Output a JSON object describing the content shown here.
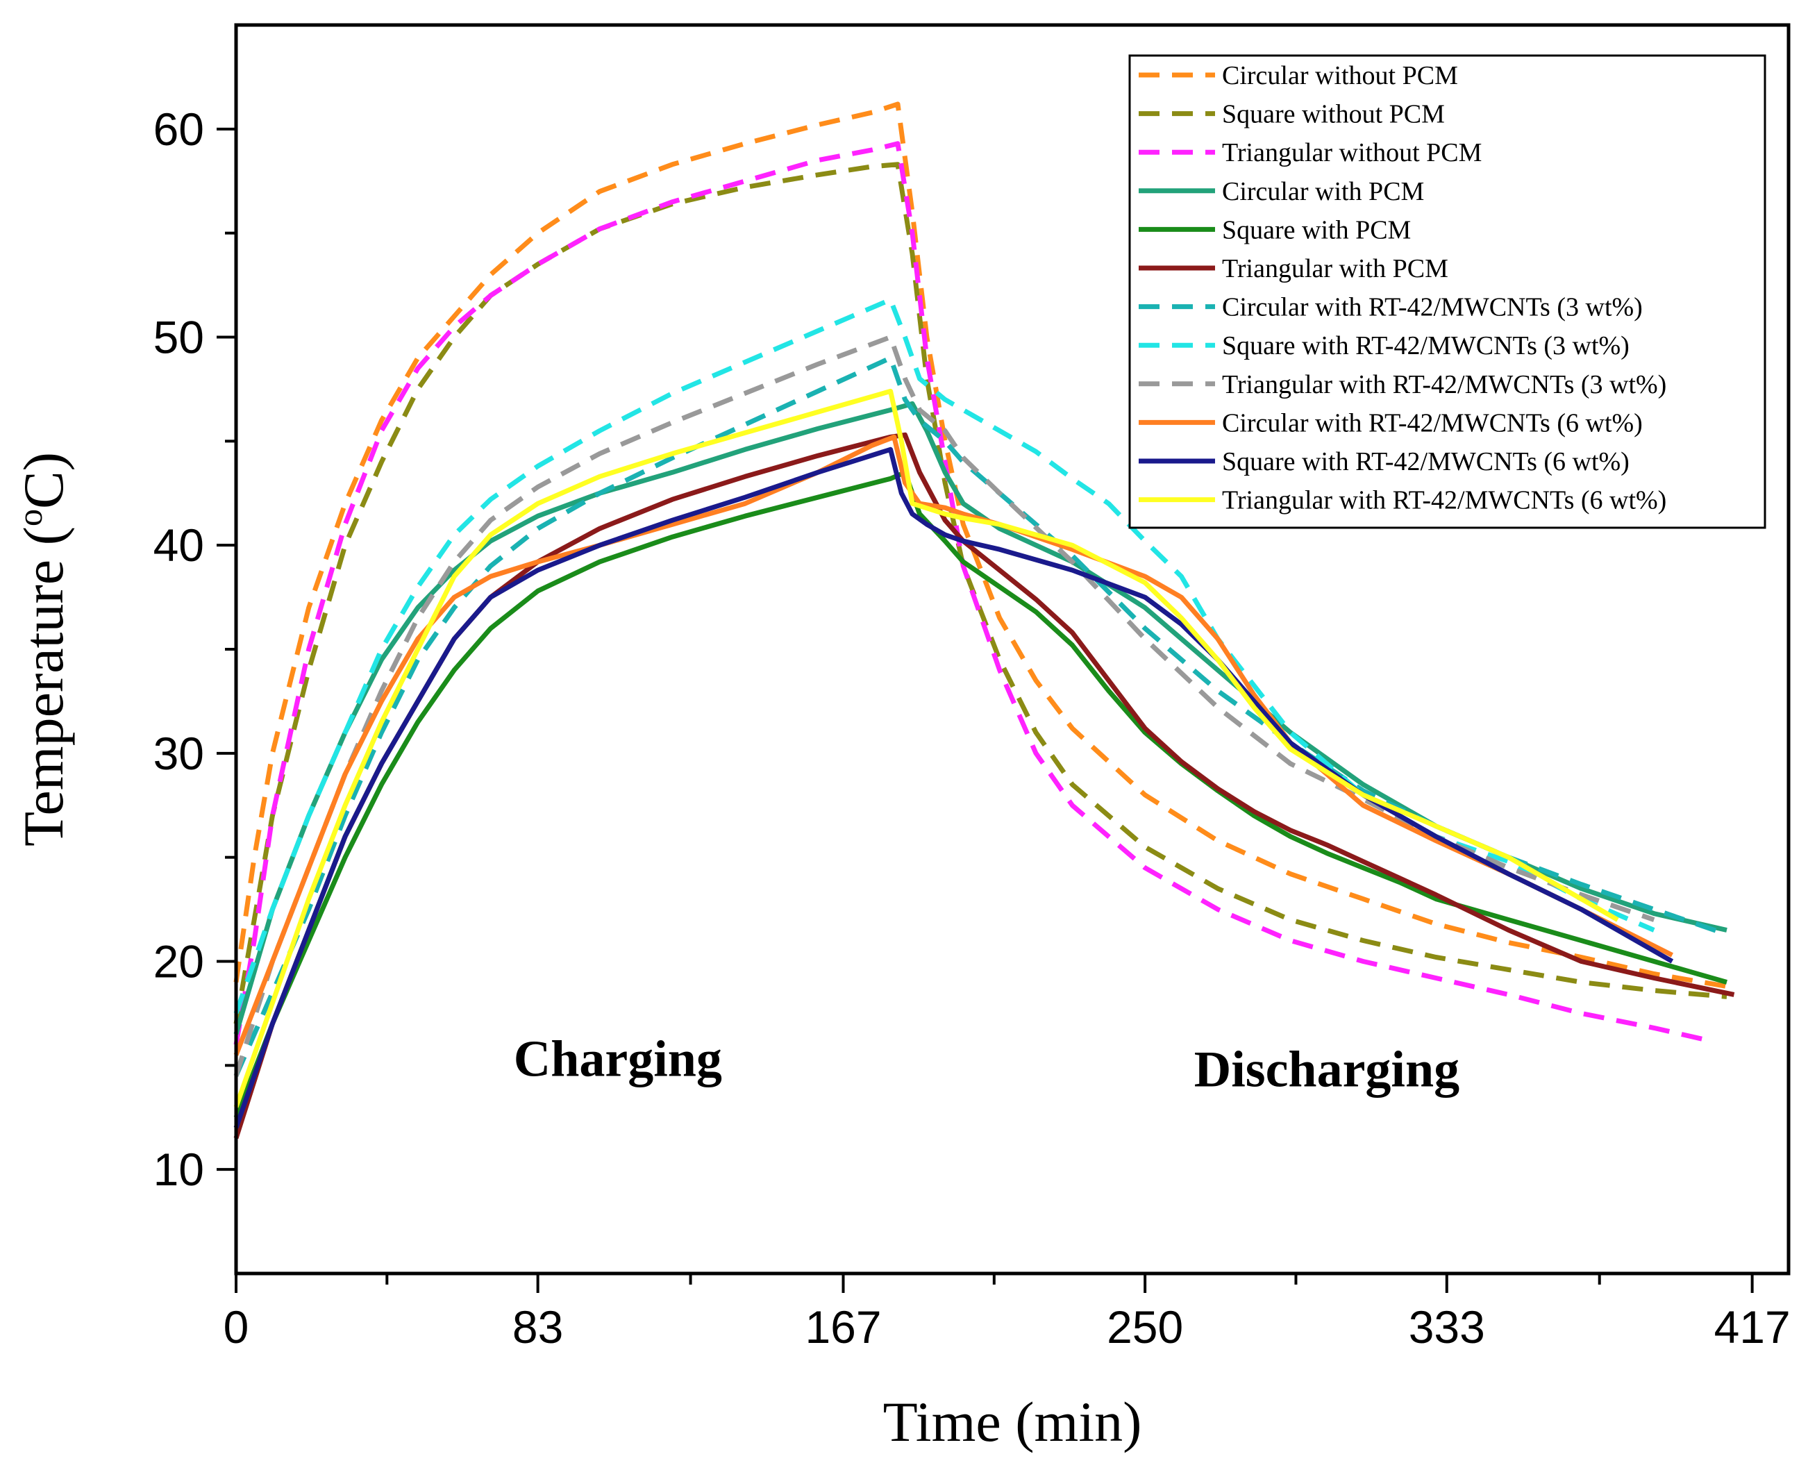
{
  "chart_data": {
    "type": "line",
    "title": "",
    "xlabel": "Time (min)",
    "ylabel_main": "Temperature (",
    "ylabel_sup": "o",
    "ylabel_end": "C)",
    "xlim": [
      0,
      427
    ],
    "ylim": [
      5,
      65
    ],
    "x_ticks": [
      0,
      83,
      167,
      250,
      333,
      417
    ],
    "x_tick_labels": [
      "0",
      "83",
      "167",
      "250",
      "333",
      "417"
    ],
    "x_minor_ticks": [
      41.5,
      125,
      208.5,
      291.5,
      375
    ],
    "y_ticks": [
      10,
      20,
      30,
      40,
      50,
      60
    ],
    "y_tick_labels": [
      "10",
      "20",
      "30",
      "40",
      "50",
      "60"
    ],
    "y_minor_ticks": [
      15,
      25,
      35,
      45,
      55
    ],
    "legend_position": "top-right",
    "annotations": [
      {
        "text": "Charging",
        "x": 105,
        "y": 14.5
      },
      {
        "text": "Discharging",
        "x": 300,
        "y": 14
      }
    ],
    "series": [
      {
        "name": "Circular without PCM",
        "color": "#FF8C1A",
        "dash": true,
        "x": [
          0,
          5,
          10,
          20,
          30,
          40,
          50,
          60,
          70,
          83,
          100,
          120,
          140,
          160,
          175,
          182,
          186,
          190,
          195,
          200,
          210,
          220,
          230,
          250,
          270,
          290,
          310,
          330,
          350,
          370,
          390,
          410
        ],
        "y": [
          19,
          25,
          30,
          37,
          42,
          46,
          49,
          51,
          53,
          55,
          57,
          58.3,
          59.3,
          60.2,
          60.8,
          61.2,
          56,
          50,
          45,
          41,
          36.5,
          33.5,
          31.2,
          28,
          25.8,
          24.2,
          23,
          21.8,
          20.9,
          20.2,
          19.4,
          18.8
        ]
      },
      {
        "name": "Square without PCM",
        "color": "#8B8B14",
        "dash": true,
        "x": [
          0,
          5,
          10,
          20,
          30,
          40,
          50,
          60,
          70,
          83,
          100,
          120,
          140,
          160,
          175,
          182,
          186,
          190,
          195,
          200,
          210,
          220,
          230,
          250,
          270,
          290,
          310,
          330,
          350,
          370,
          390,
          410
        ],
        "y": [
          17,
          22,
          27,
          34,
          40,
          44,
          47.5,
          50,
          52,
          53.5,
          55.2,
          56.4,
          57.2,
          57.8,
          58.2,
          58.3,
          54,
          48,
          43,
          39,
          34.5,
          31,
          28.5,
          25.5,
          23.5,
          22,
          21,
          20.2,
          19.6,
          19,
          18.6,
          18.3
        ]
      },
      {
        "name": "Triangular without PCM",
        "color": "#FF22FF",
        "dash": true,
        "x": [
          0,
          5,
          10,
          20,
          30,
          40,
          50,
          60,
          70,
          83,
          100,
          120,
          140,
          160,
          175,
          182,
          186,
          190,
          195,
          200,
          210,
          220,
          230,
          250,
          270,
          290,
          310,
          330,
          350,
          370,
          390,
          405
        ],
        "y": [
          16,
          21,
          27,
          35,
          41,
          45.5,
          48.5,
          50.5,
          52,
          53.5,
          55.2,
          56.5,
          57.5,
          58.5,
          59,
          59.3,
          55,
          49,
          44,
          39,
          34,
          30,
          27.5,
          24.5,
          22.5,
          21,
          20,
          19.2,
          18.4,
          17.5,
          16.8,
          16.2
        ]
      },
      {
        "name": "Circular with PCM",
        "color": "#22A27A",
        "dash": false,
        "x": [
          0,
          10,
          20,
          30,
          40,
          50,
          60,
          70,
          83,
          100,
          120,
          140,
          160,
          180,
          186,
          190,
          195,
          200,
          210,
          230,
          250,
          270,
          290,
          310,
          330,
          350,
          370,
          390,
          410
        ],
        "y": [
          16.5,
          22.5,
          27,
          31,
          34.5,
          37,
          38.8,
          40.2,
          41.4,
          42.5,
          43.5,
          44.6,
          45.6,
          46.5,
          46.8,
          45.5,
          43.5,
          42,
          40.8,
          39.2,
          37,
          34,
          31,
          28.5,
          26.5,
          25,
          23.5,
          22.3,
          21.5
        ]
      },
      {
        "name": "Square with PCM",
        "color": "#1A8C1A",
        "dash": false,
        "x": [
          0,
          10,
          20,
          30,
          40,
          50,
          60,
          70,
          83,
          100,
          120,
          140,
          160,
          180,
          184,
          188,
          195,
          200,
          210,
          220,
          230,
          240,
          250,
          260,
          270,
          280,
          290,
          300,
          310,
          320,
          330,
          350,
          370,
          390,
          410
        ],
        "y": [
          12.5,
          17,
          21,
          25,
          28.5,
          31.5,
          34,
          36,
          37.8,
          39.2,
          40.4,
          41.4,
          42.3,
          43.2,
          43.5,
          41.5,
          40.2,
          39.2,
          38,
          36.8,
          35.2,
          33,
          31,
          29.5,
          28.2,
          27,
          26,
          25.2,
          24.5,
          23.8,
          23,
          22,
          21,
          20,
          19
        ]
      },
      {
        "name": "Triangular with PCM",
        "color": "#8B1A1A",
        "dash": false,
        "x": [
          0,
          10,
          20,
          30,
          40,
          50,
          60,
          70,
          83,
          100,
          120,
          140,
          160,
          180,
          184,
          188,
          195,
          200,
          210,
          220,
          230,
          240,
          250,
          260,
          270,
          280,
          290,
          300,
          310,
          320,
          330,
          350,
          370,
          390,
          412
        ],
        "y": [
          11.5,
          17,
          21.5,
          26,
          29.5,
          32.5,
          35.5,
          37.5,
          39.2,
          40.8,
          42.2,
          43.3,
          44.3,
          45.2,
          45.3,
          43.5,
          41.2,
          40.2,
          38.8,
          37.4,
          35.8,
          33.5,
          31.2,
          29.6,
          28.3,
          27.2,
          26.3,
          25.6,
          24.8,
          24,
          23.2,
          21.5,
          20,
          19.2,
          18.4
        ]
      },
      {
        "name": "Circular with RT-42/MWCNTs (3 wt%)",
        "color": "#1AB2B2",
        "dash": true,
        "x": [
          0,
          10,
          20,
          30,
          40,
          50,
          60,
          70,
          83,
          100,
          120,
          140,
          160,
          180,
          184,
          188,
          195,
          200,
          210,
          230,
          250,
          270,
          290,
          310,
          330,
          350,
          370,
          390,
          410
        ],
        "y": [
          14.5,
          18.5,
          22.5,
          27,
          31,
          34.5,
          37,
          39,
          40.8,
          42.5,
          44.2,
          45.8,
          47.4,
          49,
          47,
          46,
          45,
          44,
          42.5,
          39.5,
          36,
          33,
          30.5,
          28.2,
          26.5,
          25,
          23.7,
          22.5,
          21.3
        ]
      },
      {
        "name": "Square with RT-42/MWCNTs (3 wt%)",
        "color": "#22E5E5",
        "dash": true,
        "x": [
          0,
          10,
          20,
          30,
          40,
          50,
          60,
          70,
          83,
          100,
          120,
          140,
          160,
          180,
          184,
          188,
          195,
          200,
          210,
          220,
          230,
          240,
          250,
          260,
          270,
          290,
          310,
          330,
          350,
          370,
          390
        ],
        "y": [
          17.5,
          22.5,
          27,
          31,
          35,
          38,
          40.5,
          42.2,
          43.8,
          45.5,
          47.3,
          48.8,
          50.3,
          51.8,
          50,
          48,
          47,
          46.5,
          45.5,
          44.5,
          43.2,
          42,
          40.2,
          38.5,
          35.5,
          31,
          28,
          26,
          24.8,
          23,
          21.5
        ]
      },
      {
        "name": "Triangular with RT-42/MWCNTs (3 wt%)",
        "color": "#999999",
        "dash": true,
        "x": [
          0,
          10,
          20,
          30,
          40,
          50,
          60,
          70,
          83,
          100,
          120,
          140,
          160,
          180,
          184,
          188,
          195,
          200,
          210,
          230,
          250,
          270,
          290,
          310,
          330,
          350,
          370,
          390
        ],
        "y": [
          14.5,
          20,
          24.5,
          29,
          33,
          36.5,
          39.2,
          41.2,
          42.8,
          44.4,
          45.9,
          47.3,
          48.7,
          50,
          48,
          46.5,
          45.5,
          44.2,
          42.5,
          39.2,
          35.5,
          32.2,
          29.5,
          27.8,
          26,
          24.5,
          23.2,
          22
        ]
      },
      {
        "name": "Circular with RT-42/MWCNTs (6 wt%)",
        "color": "#FF7F22",
        "dash": false,
        "x": [
          0,
          10,
          20,
          30,
          40,
          50,
          60,
          70,
          83,
          100,
          120,
          140,
          160,
          175,
          181,
          184,
          188,
          195,
          200,
          210,
          230,
          250,
          260,
          270,
          280,
          290,
          310,
          330,
          350,
          370,
          395
        ],
        "y": [
          15.5,
          20,
          24.5,
          29,
          32.5,
          35.5,
          37.5,
          38.5,
          39.2,
          40,
          41,
          42,
          43.5,
          44.8,
          45.2,
          43,
          42,
          41.8,
          41.5,
          41,
          39.8,
          38.5,
          37.5,
          35.5,
          32.8,
          30.5,
          27.5,
          25.8,
          24.2,
          22.5,
          20.3
        ]
      },
      {
        "name": "Square with RT-42/MWCNTs (6 wt%)",
        "color": "#1A1A8C",
        "dash": false,
        "x": [
          0,
          10,
          20,
          30,
          40,
          50,
          60,
          70,
          83,
          100,
          120,
          140,
          160,
          180,
          183,
          186,
          190,
          195,
          200,
          210,
          230,
          250,
          260,
          270,
          280,
          290,
          310,
          330,
          350,
          370,
          395
        ],
        "y": [
          12,
          17,
          21.5,
          26,
          29.5,
          32.5,
          35.5,
          37.5,
          38.8,
          40,
          41.2,
          42.3,
          43.5,
          44.6,
          42.5,
          41.5,
          41,
          40.5,
          40.2,
          39.8,
          38.8,
          37.5,
          36.2,
          34.5,
          32.5,
          30.5,
          28,
          26,
          24.2,
          22.5,
          20
        ]
      },
      {
        "name": "Triangular with RT-42/MWCNTs (6 wt%)",
        "color": "#FFFF22",
        "dash": false,
        "x": [
          0,
          10,
          20,
          30,
          40,
          50,
          60,
          70,
          83,
          100,
          120,
          140,
          160,
          180,
          183,
          186,
          195,
          200,
          210,
          230,
          250,
          260,
          270,
          280,
          290,
          310,
          330,
          350,
          365,
          380
        ],
        "y": [
          13,
          18,
          23,
          27.5,
          31.5,
          35,
          38.5,
          40.5,
          42,
          43.3,
          44.4,
          45.4,
          46.4,
          47.4,
          45,
          42,
          41.5,
          41.3,
          41,
          40,
          38.2,
          36.5,
          34.5,
          32.2,
          30.2,
          28,
          26.5,
          25,
          23.5,
          22
        ]
      }
    ]
  }
}
